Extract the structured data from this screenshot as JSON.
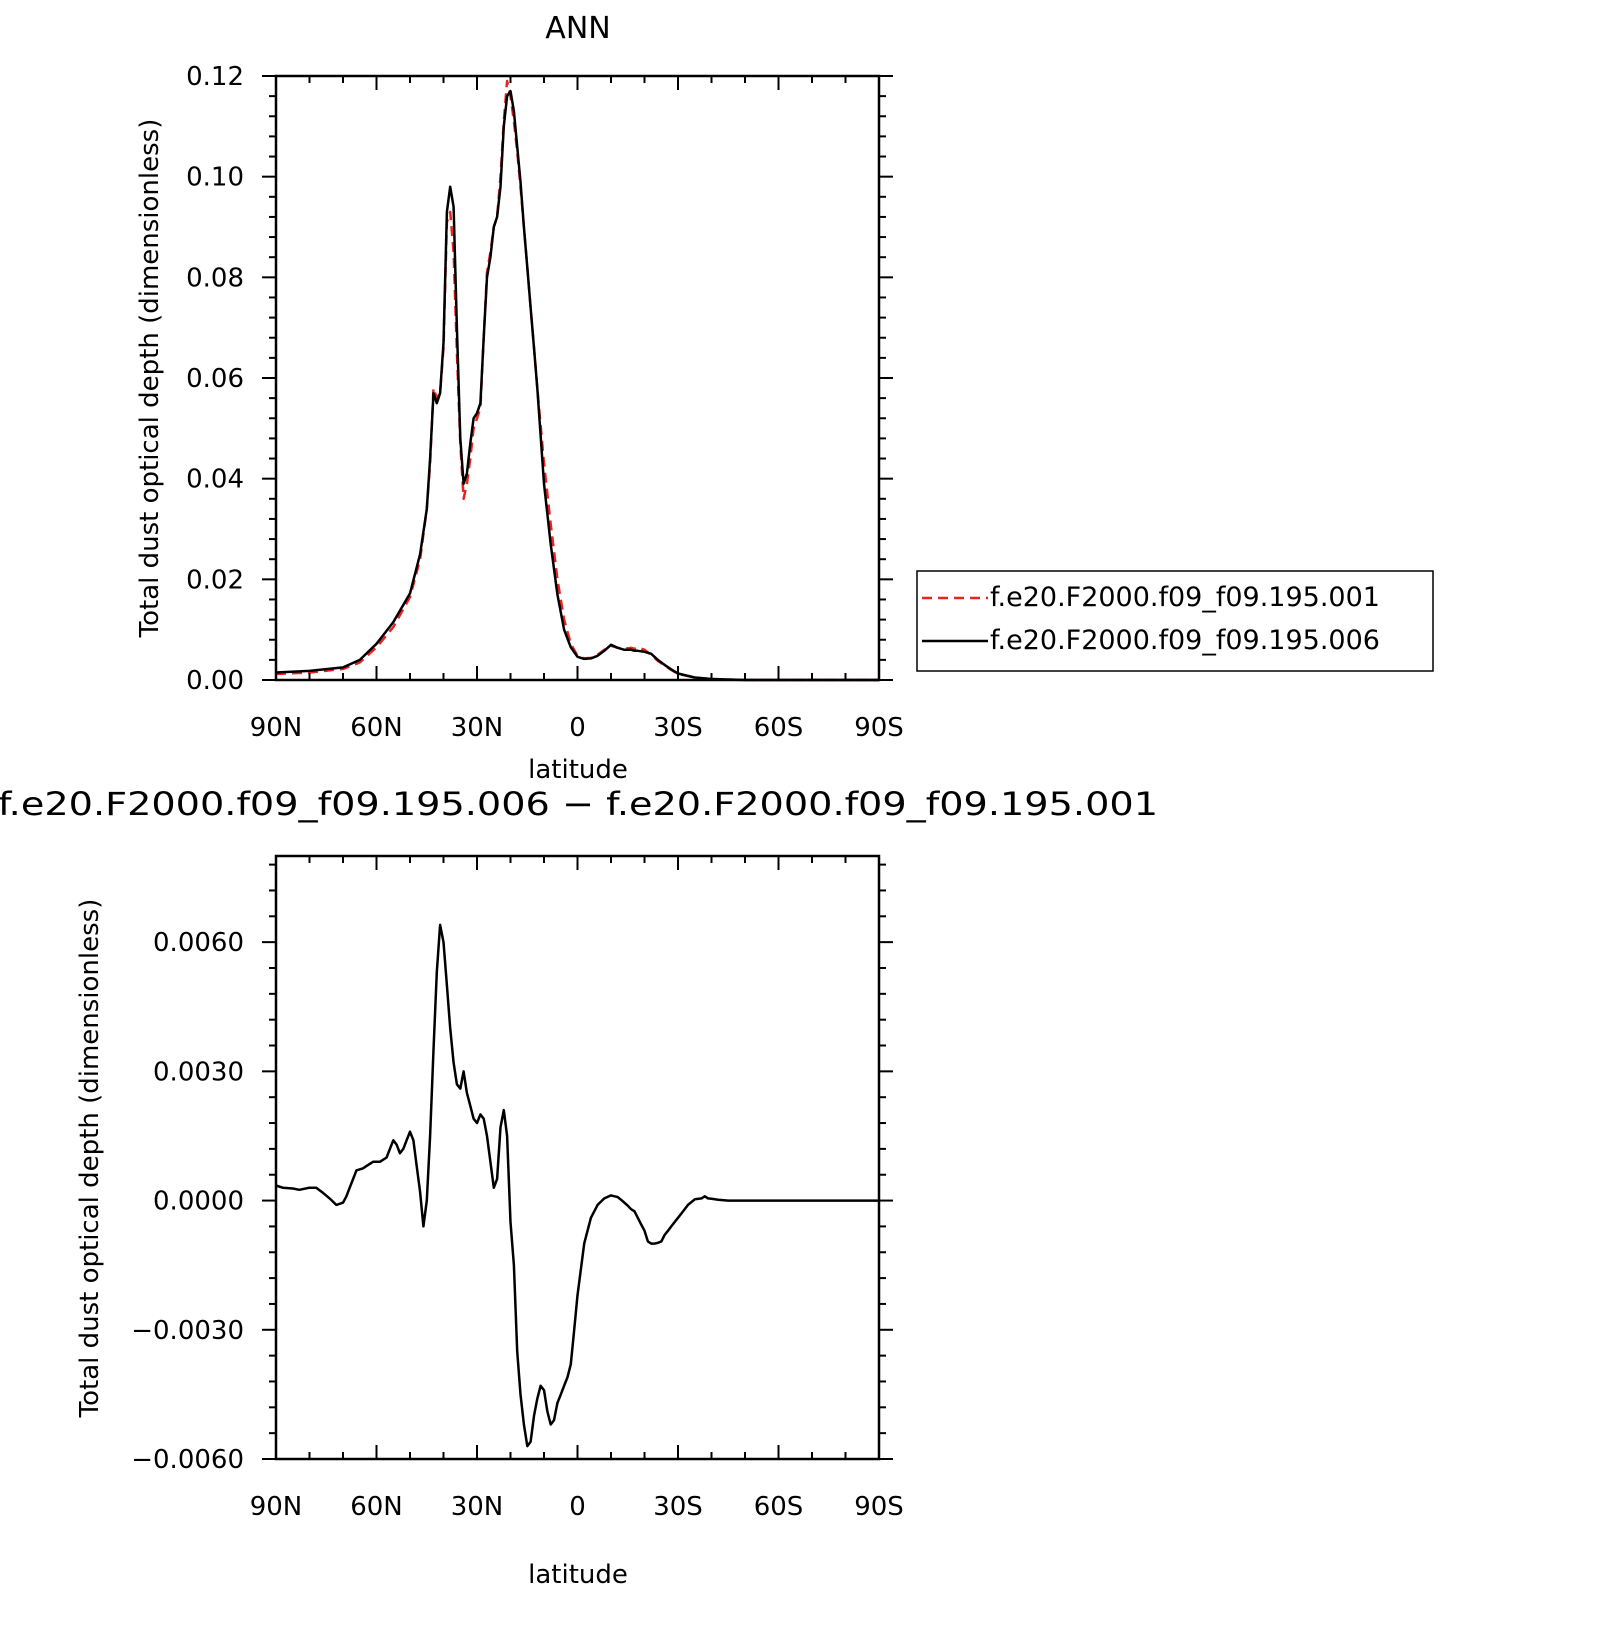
{
  "chart_data": [
    {
      "type": "line",
      "title": "ANN",
      "xlabel": "latitude",
      "ylabel": "Total dust optical depth (dimensionless)",
      "xlim": [
        90,
        -90
      ],
      "ylim": [
        0,
        0.12
      ],
      "x_ticks": [
        {
          "value": 90,
          "label": "90N"
        },
        {
          "value": 60,
          "label": "60N"
        },
        {
          "value": 30,
          "label": "30N"
        },
        {
          "value": 0,
          "label": "0"
        },
        {
          "value": -30,
          "label": "30S"
        },
        {
          "value": -60,
          "label": "60S"
        },
        {
          "value": -90,
          "label": "90S"
        }
      ],
      "y_ticks": [
        {
          "value": 0,
          "label": "0.00"
        },
        {
          "value": 0.02,
          "label": "0.02"
        },
        {
          "value": 0.04,
          "label": "0.04"
        },
        {
          "value": 0.06,
          "label": "0.06"
        },
        {
          "value": 0.08,
          "label": "0.08"
        },
        {
          "value": 0.1,
          "label": "0.10"
        },
        {
          "value": 0.12,
          "label": "0.12"
        }
      ],
      "grid": false,
      "legend_position": "right",
      "series": [
        {
          "name": "f.e20.F2000.f09_f09.195.001",
          "color": "#e8241f",
          "dash": "dashed",
          "x": [
            90,
            80,
            70,
            65,
            60,
            55,
            50,
            47,
            45,
            44,
            43,
            42,
            41,
            40,
            39,
            38,
            37,
            36,
            35,
            34,
            33,
            32,
            31,
            30,
            29,
            28,
            27,
            26,
            25,
            24,
            23,
            22,
            21,
            20,
            19,
            18,
            17,
            16,
            15,
            14,
            13,
            12,
            10,
            8,
            6,
            4,
            2,
            0,
            -2,
            -4,
            -6,
            -8,
            -10,
            -12,
            -14,
            -16,
            -17,
            -18,
            -20,
            -22,
            -24,
            -26,
            -28,
            -30,
            -35,
            -40,
            -45,
            -50,
            -60,
            -70,
            -80,
            -90
          ],
          "y": [
            0.0012,
            0.0015,
            0.0022,
            0.0035,
            0.0065,
            0.0105,
            0.0165,
            0.024,
            0.034,
            0.043,
            0.058,
            0.056,
            0.057,
            0.066,
            0.091,
            0.093,
            0.085,
            0.065,
            0.047,
            0.036,
            0.039,
            0.044,
            0.05,
            0.052,
            0.054,
            0.068,
            0.081,
            0.085,
            0.09,
            0.092,
            0.1,
            0.111,
            0.119,
            0.116,
            0.111,
            0.105,
            0.098,
            0.09,
            0.082,
            0.074,
            0.066,
            0.058,
            0.043,
            0.031,
            0.02,
            0.012,
            0.0072,
            0.0048,
            0.0043,
            0.0044,
            0.005,
            0.006,
            0.0068,
            0.0064,
            0.0062,
            0.0064,
            0.0062,
            0.0065,
            0.006,
            0.005,
            0.0038,
            0.0029,
            0.002,
            0.0012,
            0.0005,
            0.0002,
            0.0001,
            0.0,
            0.0,
            0.0,
            0.0,
            0.0
          ]
        },
        {
          "name": "f.e20.F2000.f09_f09.195.006",
          "color": "#000000",
          "dash": "solid",
          "x": [
            90,
            80,
            70,
            65,
            60,
            55,
            50,
            47,
            45,
            44,
            43,
            42,
            41,
            40,
            39,
            38,
            37,
            36,
            35,
            34,
            33,
            32,
            31,
            30,
            29,
            28,
            27,
            26,
            25,
            24,
            23,
            22,
            21,
            20,
            19,
            18,
            17,
            16,
            15,
            14,
            13,
            12,
            10,
            8,
            6,
            4,
            2,
            0,
            -2,
            -4,
            -6,
            -8,
            -10,
            -12,
            -14,
            -16,
            -17,
            -18,
            -20,
            -22,
            -24,
            -26,
            -28,
            -30,
            -35,
            -40,
            -45,
            -50,
            -60,
            -70,
            -80,
            -90
          ],
          "y": [
            0.0015,
            0.0018,
            0.0025,
            0.004,
            0.0072,
            0.0115,
            0.0172,
            0.025,
            0.034,
            0.044,
            0.057,
            0.055,
            0.057,
            0.067,
            0.093,
            0.098,
            0.094,
            0.07,
            0.048,
            0.039,
            0.041,
            0.047,
            0.052,
            0.053,
            0.055,
            0.068,
            0.08,
            0.084,
            0.09,
            0.092,
            0.098,
            0.11,
            0.116,
            0.117,
            0.113,
            0.106,
            0.099,
            0.09,
            0.082,
            0.074,
            0.066,
            0.058,
            0.039,
            0.027,
            0.017,
            0.01,
            0.0065,
            0.0046,
            0.0042,
            0.0043,
            0.0048,
            0.0058,
            0.007,
            0.0064,
            0.006,
            0.006,
            0.0058,
            0.0058,
            0.0056,
            0.0052,
            0.004,
            0.003,
            0.0021,
            0.0013,
            0.0005,
            0.0002,
            0.0001,
            0.0,
            0.0,
            0.0,
            0.0,
            0.0
          ]
        }
      ]
    },
    {
      "type": "line",
      "title": "f.e20.F2000.f09_f09.195.006 − f.e20.F2000.f09_f09.195.001",
      "xlabel": "latitude",
      "ylabel": "Total dust optical depth (dimensionless)",
      "xlim": [
        90,
        -90
      ],
      "ylim": [
        -0.006,
        0.008
      ],
      "x_ticks": [
        {
          "value": 90,
          "label": "90N"
        },
        {
          "value": 60,
          "label": "60N"
        },
        {
          "value": 30,
          "label": "30N"
        },
        {
          "value": 0,
          "label": "0"
        },
        {
          "value": -30,
          "label": "30S"
        },
        {
          "value": -60,
          "label": "60S"
        },
        {
          "value": -90,
          "label": "90S"
        }
      ],
      "y_ticks": [
        {
          "value": -0.006,
          "label": "−0.0060"
        },
        {
          "value": -0.003,
          "label": "−0.0030"
        },
        {
          "value": 0,
          "label": "0.0000"
        },
        {
          "value": 0.003,
          "label": "0.0030"
        },
        {
          "value": 0.006,
          "label": "0.0060"
        }
      ],
      "grid": false,
      "series": [
        {
          "color": "#000000",
          "dash": "solid",
          "x": [
            90,
            88,
            85,
            83,
            80,
            78,
            76,
            74,
            72,
            70,
            69,
            68,
            67,
            66,
            64,
            63,
            61,
            59,
            57,
            56,
            55,
            54,
            53,
            52,
            51,
            50,
            49,
            48,
            47,
            46,
            45,
            44,
            43,
            42,
            41,
            40,
            39,
            38,
            37,
            36,
            35,
            34,
            33,
            32,
            31,
            30,
            29,
            28,
            27,
            26,
            25,
            24,
            23,
            22,
            21,
            20,
            19,
            18,
            17,
            16,
            15,
            14,
            13,
            12,
            11,
            10,
            9,
            8,
            7,
            6,
            5,
            4,
            3,
            2,
            1,
            0,
            -2,
            -4,
            -6,
            -8,
            -10,
            -12,
            -13,
            -14,
            -15,
            -16,
            -17,
            -18,
            -19,
            -20,
            -21,
            -22,
            -23,
            -24,
            -25,
            -26,
            -27,
            -28,
            -29,
            -30,
            -31,
            -33,
            -35,
            -37,
            -38,
            -39,
            -40,
            -42,
            -45,
            -50,
            -60,
            -70,
            -80,
            -90
          ],
          "y": [
            0.00035,
            0.0003,
            0.00028,
            0.00025,
            0.0003,
            0.0003,
            0.00018,
            5e-05,
            -0.0001,
            -5e-05,
            0.0001,
            0.0003,
            0.0005,
            0.0007,
            0.00075,
            0.0008,
            0.0009,
            0.0009,
            0.001,
            0.0012,
            0.0014,
            0.0013,
            0.0011,
            0.0012,
            0.0014,
            0.0016,
            0.0014,
            0.0008,
            0.0002,
            -0.0006,
            0.0,
            0.0015,
            0.0035,
            0.0053,
            0.0064,
            0.006,
            0.005,
            0.004,
            0.0032,
            0.0027,
            0.0026,
            0.003,
            0.0025,
            0.0022,
            0.0019,
            0.0018,
            0.002,
            0.0019,
            0.0015,
            0.0009,
            0.0003,
            0.0005,
            0.0017,
            0.0021,
            0.0015,
            -0.0005,
            -0.0015,
            -0.0035,
            -0.0045,
            -0.0052,
            -0.0057,
            -0.0056,
            -0.005,
            -0.0046,
            -0.0043,
            -0.0044,
            -0.0049,
            -0.0052,
            -0.0051,
            -0.0047,
            -0.0045,
            -0.0043,
            -0.0041,
            -0.0038,
            -0.003,
            -0.0022,
            -0.001,
            -0.0004,
            -0.0001,
            5e-05,
            0.00012,
            8e-05,
            2e-05,
            -5e-05,
            -0.00012,
            -0.0002,
            -0.00025,
            -0.0004,
            -0.00055,
            -0.0007,
            -0.00095,
            -0.001,
            -0.001,
            -0.00098,
            -0.00095,
            -0.0008,
            -0.0007,
            -0.0006,
            -0.0005,
            -0.0004,
            -0.0003,
            -0.0001,
            3e-05,
            5e-05,
            0.0001,
            5e-05,
            4e-05,
            2e-05,
            0.0,
            0.0,
            0.0,
            0.0,
            0.0,
            0.0
          ]
        }
      ]
    }
  ]
}
